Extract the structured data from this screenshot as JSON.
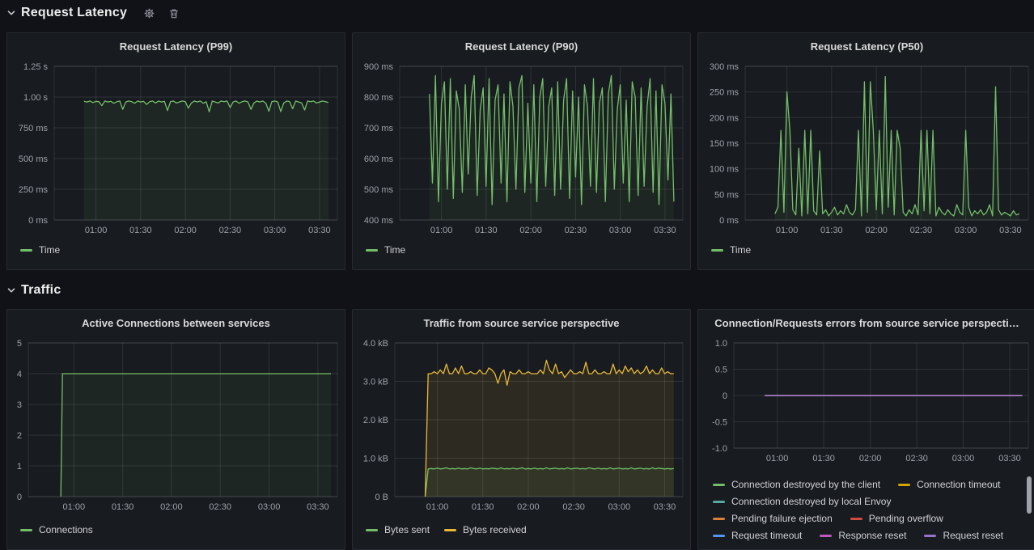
{
  "sections": [
    {
      "title": "Request Latency"
    },
    {
      "title": "Traffic"
    }
  ],
  "chart_data": [
    {
      "type": "line",
      "title": "Request Latency (P99)",
      "ylim": [
        0,
        1250
      ],
      "yticks": [
        [
          0,
          "0 ms"
        ],
        [
          250,
          "250 ms"
        ],
        [
          500,
          "500 ms"
        ],
        [
          750,
          "750 ms"
        ],
        [
          1000,
          "1.00 s"
        ],
        [
          1250,
          "1.25 s"
        ]
      ],
      "xlim": [
        32,
        222
      ],
      "xticks": [
        [
          60,
          "01:00"
        ],
        [
          90,
          "01:30"
        ],
        [
          120,
          "02:00"
        ],
        [
          150,
          "02:30"
        ],
        [
          180,
          "03:00"
        ],
        [
          210,
          "03:30"
        ]
      ],
      "grid": true,
      "legend_position": "bottom",
      "series": [
        {
          "name": "Time",
          "color": "#73bf69",
          "fill_opacity": 0.08,
          "x_start": 52,
          "x_step": 2,
          "values": [
            965,
            960,
            968,
            955,
            965,
            962,
            930,
            968,
            960,
            965,
            950,
            962,
            968,
            900,
            960,
            968,
            962,
            950,
            968,
            960,
            965,
            940,
            962,
            968,
            952,
            968,
            960,
            965,
            890,
            962,
            968,
            952,
            960,
            968,
            962,
            910,
            952,
            968,
            960,
            968,
            950,
            962,
            880,
            968,
            960,
            952,
            968,
            962,
            968,
            915,
            960,
            968,
            950,
            962,
            968,
            960,
            900,
            952,
            968,
            960,
            968,
            950,
            885,
            962,
            968,
            960,
            882,
            952,
            968,
            962,
            905,
            968,
            960,
            952,
            895,
            968,
            962,
            968,
            952,
            960,
            968,
            962,
            955
          ]
        }
      ]
    },
    {
      "type": "line",
      "title": "Request Latency (P90)",
      "ylim": [
        400,
        900
      ],
      "yticks": [
        [
          400,
          "400 ms"
        ],
        [
          500,
          "500 ms"
        ],
        [
          600,
          "600 ms"
        ],
        [
          700,
          "700 ms"
        ],
        [
          800,
          "800 ms"
        ],
        [
          900,
          "900 ms"
        ]
      ],
      "xlim": [
        32,
        222
      ],
      "xticks": [
        [
          60,
          "01:00"
        ],
        [
          90,
          "01:30"
        ],
        [
          120,
          "02:00"
        ],
        [
          150,
          "02:30"
        ],
        [
          180,
          "03:00"
        ],
        [
          210,
          "03:30"
        ]
      ],
      "grid": true,
      "legend_position": "bottom",
      "series": [
        {
          "name": "Time",
          "color": "#73bf69",
          "fill_opacity": 0.07,
          "x_start": 52,
          "x_step": 2,
          "values": [
            810,
            520,
            870,
            460,
            780,
            850,
            500,
            860,
            470,
            820,
            760,
            490,
            840,
            550,
            800,
            870,
            480,
            760,
            830,
            510,
            860,
            450,
            790,
            840,
            520,
            810,
            460,
            850,
            770,
            500,
            830,
            870,
            490,
            780,
            520,
            840,
            460,
            800,
            860,
            510,
            770,
            830,
            480,
            850,
            500,
            790,
            860,
            470,
            820,
            540,
            800,
            450,
            840,
            770,
            510,
            860,
            490,
            780,
            830,
            460,
            810,
            870,
            500,
            760,
            840,
            520,
            790,
            460,
            850,
            800,
            480,
            830,
            510,
            770,
            860,
            490,
            820,
            450,
            840,
            780,
            530,
            810,
            460
          ]
        }
      ]
    },
    {
      "type": "line",
      "title": "Request Latency (P50)",
      "ylim": [
        0,
        300
      ],
      "yticks": [
        [
          0,
          "0 ms"
        ],
        [
          50,
          "50 ms"
        ],
        [
          100,
          "100 ms"
        ],
        [
          150,
          "150 ms"
        ],
        [
          200,
          "200 ms"
        ],
        [
          250,
          "250 ms"
        ],
        [
          300,
          "300 ms"
        ]
      ],
      "xlim": [
        32,
        222
      ],
      "xticks": [
        [
          60,
          "01:00"
        ],
        [
          90,
          "01:30"
        ],
        [
          120,
          "02:00"
        ],
        [
          150,
          "02:30"
        ],
        [
          180,
          "03:00"
        ],
        [
          210,
          "03:30"
        ]
      ],
      "grid": true,
      "legend_position": "bottom",
      "series": [
        {
          "name": "Time",
          "color": "#73bf69",
          "fill_opacity": 0.08,
          "x_start": 52,
          "x_step": 2,
          "values": [
            12,
            25,
            175,
            15,
            250,
            175,
            20,
            10,
            140,
            8,
            175,
            12,
            175,
            18,
            10,
            135,
            12,
            20,
            8,
            15,
            25,
            10,
            18,
            12,
            30,
            15,
            10,
            20,
            175,
            8,
            270,
            15,
            270,
            175,
            20,
            175,
            12,
            280,
            25,
            175,
            10,
            175,
            140,
            15,
            8,
            20,
            12,
            30,
            10,
            175,
            18,
            175,
            12,
            175,
            8,
            25,
            15,
            10,
            20,
            12,
            8,
            30,
            15,
            10,
            175,
            25,
            8,
            18,
            12,
            20,
            10,
            15,
            30,
            8,
            260,
            20,
            10,
            15,
            12,
            8,
            18,
            10,
            12
          ]
        }
      ]
    },
    {
      "type": "line",
      "title": "Active Connections between services",
      "ylim": [
        0,
        5
      ],
      "yticks": [
        [
          0,
          "0"
        ],
        [
          1,
          "1"
        ],
        [
          2,
          "2"
        ],
        [
          3,
          "3"
        ],
        [
          4,
          "4"
        ],
        [
          5,
          "5"
        ]
      ],
      "xlim": [
        32,
        222
      ],
      "xticks": [
        [
          60,
          "01:00"
        ],
        [
          90,
          "01:30"
        ],
        [
          120,
          "02:00"
        ],
        [
          150,
          "02:30"
        ],
        [
          180,
          "03:00"
        ],
        [
          210,
          "03:30"
        ]
      ],
      "grid": true,
      "legend_position": "bottom",
      "series": [
        {
          "name": "Connections",
          "color": "#73bf69",
          "fill_opacity": 0.07,
          "points": [
            [
              52,
              0
            ],
            [
              53,
              4
            ],
            [
              218,
              4
            ]
          ]
        }
      ]
    },
    {
      "type": "line",
      "title": "Traffic from source service perspective",
      "ylim": [
        0,
        4.0
      ],
      "yticks": [
        [
          0,
          "0 B"
        ],
        [
          1,
          "1.0 kB"
        ],
        [
          2,
          "2.0 kB"
        ],
        [
          3,
          "3.0 kB"
        ],
        [
          4,
          "4.0 kB"
        ]
      ],
      "xlim": [
        32,
        222
      ],
      "xticks": [
        [
          60,
          "01:00"
        ],
        [
          90,
          "01:30"
        ],
        [
          120,
          "02:00"
        ],
        [
          150,
          "02:30"
        ],
        [
          180,
          "03:00"
        ],
        [
          210,
          "03:30"
        ]
      ],
      "grid": true,
      "legend_position": "bottom",
      "series": [
        {
          "name": "Bytes sent",
          "color": "#73bf69",
          "fill_opacity": 0.08,
          "x_start": 52,
          "x_step": 2,
          "values": [
            0,
            0.72,
            0.73,
            0.72,
            0.74,
            0.72,
            0.73,
            0.75,
            0.72,
            0.73,
            0.72,
            0.74,
            0.72,
            0.73,
            0.72,
            0.75,
            0.73,
            0.72,
            0.74,
            0.72,
            0.73,
            0.72,
            0.74,
            0.73,
            0.72,
            0.75,
            0.72,
            0.73,
            0.72,
            0.74,
            0.72,
            0.73,
            0.75,
            0.72,
            0.73,
            0.72,
            0.74,
            0.72,
            0.73,
            0.72,
            0.75,
            0.72,
            0.73,
            0.74,
            0.72,
            0.73,
            0.72,
            0.75,
            0.72,
            0.73,
            0.74,
            0.72,
            0.73,
            0.72,
            0.75,
            0.73,
            0.72,
            0.74,
            0.72,
            0.73,
            0.72,
            0.75,
            0.72,
            0.73,
            0.74,
            0.72,
            0.73,
            0.72,
            0.75,
            0.72,
            0.73,
            0.74,
            0.72,
            0.73,
            0.72,
            0.75,
            0.72,
            0.74,
            0.73,
            0.72,
            0.73,
            0.72,
            0.73
          ]
        },
        {
          "name": "Bytes received",
          "color": "#eab839",
          "fill_opacity": 0.1,
          "x_start": 52,
          "x_step": 2,
          "values": [
            0,
            3.2,
            3.2,
            3.25,
            3.2,
            3.3,
            3.2,
            3.45,
            3.2,
            3.2,
            3.35,
            3.2,
            3.4,
            3.2,
            3.2,
            3.25,
            3.2,
            3.2,
            3.3,
            3.2,
            3.2,
            3.35,
            3.3,
            3.2,
            2.95,
            3.2,
            3.3,
            2.9,
            3.25,
            3.2,
            3.2,
            3.3,
            3.2,
            3.2,
            3.25,
            3.2,
            3.2,
            3.2,
            3.3,
            3.2,
            3.55,
            3.3,
            3.2,
            3.45,
            3.2,
            3.25,
            3.1,
            3.2,
            3.3,
            3.2,
            3.2,
            3.25,
            3.2,
            3.5,
            3.2,
            3.2,
            3.3,
            3.2,
            3.2,
            3.25,
            3.2,
            3.2,
            3.45,
            3.2,
            3.3,
            3.2,
            3.4,
            3.25,
            3.35,
            3.2,
            3.3,
            3.2,
            3.25,
            3.4,
            3.2,
            3.3,
            3.2,
            3.2,
            3.35,
            3.2,
            3.25,
            3.2,
            3.2
          ]
        }
      ]
    },
    {
      "type": "line",
      "title": "Connection/Requests errors from source service perspecti…",
      "ylim": [
        -1.0,
        1.0
      ],
      "yticks": [
        [
          -1,
          "-1.0"
        ],
        [
          -0.5,
          "-0.5"
        ],
        [
          0,
          "0"
        ],
        [
          0.5,
          "0.5"
        ],
        [
          1,
          "1.0"
        ]
      ],
      "xlim": [
        32,
        222
      ],
      "xticks": [
        [
          60,
          "01:00"
        ],
        [
          90,
          "01:30"
        ],
        [
          120,
          "02:00"
        ],
        [
          150,
          "02:30"
        ],
        [
          180,
          "03:00"
        ],
        [
          210,
          "03:30"
        ]
      ],
      "grid": true,
      "legend_position": "bottom",
      "legend_scrollbar": true,
      "series": [
        {
          "name": "Connection destroyed by the client",
          "color": "#73bf69",
          "fill_opacity": 0,
          "points": [
            [
              52,
              0
            ],
            [
              218,
              0
            ]
          ]
        },
        {
          "name": "Connection timeout",
          "color": "#cfa500",
          "fill_opacity": 0,
          "points": [
            [
              52,
              0
            ],
            [
              218,
              0
            ]
          ]
        },
        {
          "name": "Connection destroyed by local Envoy",
          "color": "#53aba2",
          "fill_opacity": 0,
          "points": [
            [
              52,
              0
            ],
            [
              218,
              0
            ]
          ]
        },
        {
          "name": "Pending failure ejection",
          "color": "#d9803a",
          "fill_opacity": 0,
          "points": [
            [
              52,
              0
            ],
            [
              218,
              0
            ]
          ]
        },
        {
          "name": "Pending overflow",
          "color": "#d14b41",
          "fill_opacity": 0,
          "points": [
            [
              52,
              0
            ],
            [
              218,
              0
            ]
          ]
        },
        {
          "name": "Request timeout",
          "color": "#5794f2",
          "fill_opacity": 0,
          "points": [
            [
              52,
              0
            ],
            [
              218,
              0
            ]
          ]
        },
        {
          "name": "Response reset",
          "color": "#bf58bf",
          "fill_opacity": 0,
          "points": [
            [
              52,
              0
            ],
            [
              218,
              0
            ]
          ]
        },
        {
          "name": "Request reset",
          "color": "#9674c9",
          "fill_opacity": 0,
          "points": [
            [
              52,
              0
            ],
            [
              218,
              0
            ]
          ]
        }
      ]
    }
  ],
  "colors": {
    "background": "#111217",
    "panel_background": "#181b1f",
    "grid": "rgba(204,204,220,0.13)",
    "axis_text": "#9da2ab",
    "green": "#73bf69",
    "yellow": "#eab839",
    "purple": "#9674c9"
  }
}
